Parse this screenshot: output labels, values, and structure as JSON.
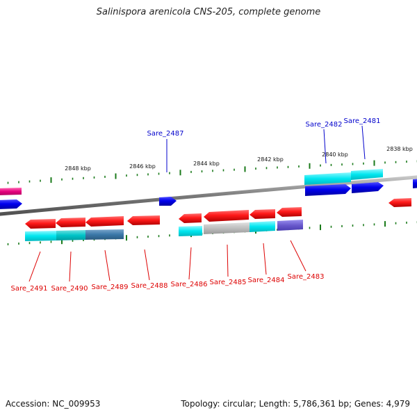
{
  "title": "Salinispora arenicola CNS-205, complete genome",
  "footer": {
    "accession": "Accession: NC_009953",
    "summary": "Topology: circular; Length: 5,786,361 bp; Genes: 4,979"
  },
  "scale_labels": [
    "2848 kbp",
    "2846 kbp",
    "2844 kbp",
    "2842 kbp",
    "2840 kbp",
    "2838 kbp"
  ],
  "genes_above": [
    {
      "name": "Sare_2487",
      "color": "#0000cc"
    },
    {
      "name": "Sare_2482",
      "color": "#0000cc"
    },
    {
      "name": "Sare_2481",
      "color": "#0000cc"
    }
  ],
  "genes_below": [
    {
      "name": "Sare_2491",
      "color": "#dd0000"
    },
    {
      "name": "Sare_2490",
      "color": "#dd0000"
    },
    {
      "name": "Sare_2489",
      "color": "#dd0000"
    },
    {
      "name": "Sare_2488",
      "color": "#dd0000"
    },
    {
      "name": "Sare_2486",
      "color": "#dd0000"
    },
    {
      "name": "Sare_2485",
      "color": "#dd0000"
    },
    {
      "name": "Sare_2484",
      "color": "#dd0000"
    },
    {
      "name": "Sare_2483",
      "color": "#dd0000"
    }
  ],
  "colors": {
    "forward_strand": "#0000e6",
    "reverse_strand": "#e60000",
    "cog_cyan": "#00e0e6",
    "cog_teal": "#00c8c8",
    "cog_steel": "#3a78a8",
    "cog_grey": "#b8b8b8",
    "cog_slate": "#6a5acd",
    "cog_pink": "#e6007e",
    "backbone": "#7a7a7a",
    "ticks": "#1a7a1a"
  }
}
